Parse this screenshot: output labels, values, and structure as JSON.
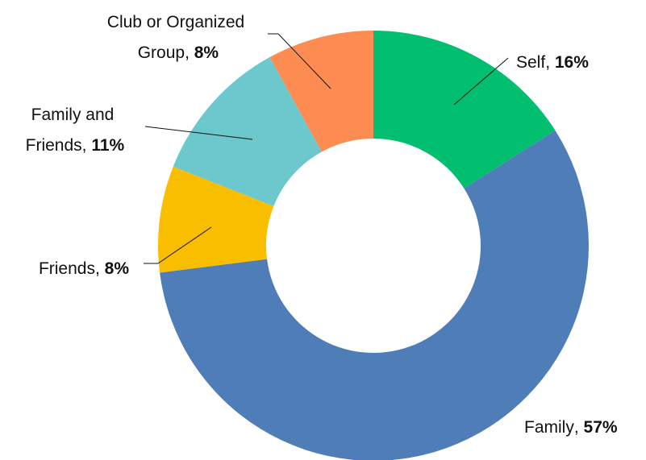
{
  "chart_data": {
    "type": "donut",
    "categories": [
      "Self",
      "Family",
      "Friends",
      "Family and Friends",
      "Club or Organized Group"
    ],
    "values": [
      16,
      57,
      8,
      11,
      8
    ],
    "value_labels": [
      "16%",
      "57%",
      "8%",
      "11%",
      "8%"
    ],
    "colors": [
      "#02bf6f",
      "#4f7db7",
      "#f9be00",
      "#6cc8cc",
      "#fd8c52"
    ]
  }
}
